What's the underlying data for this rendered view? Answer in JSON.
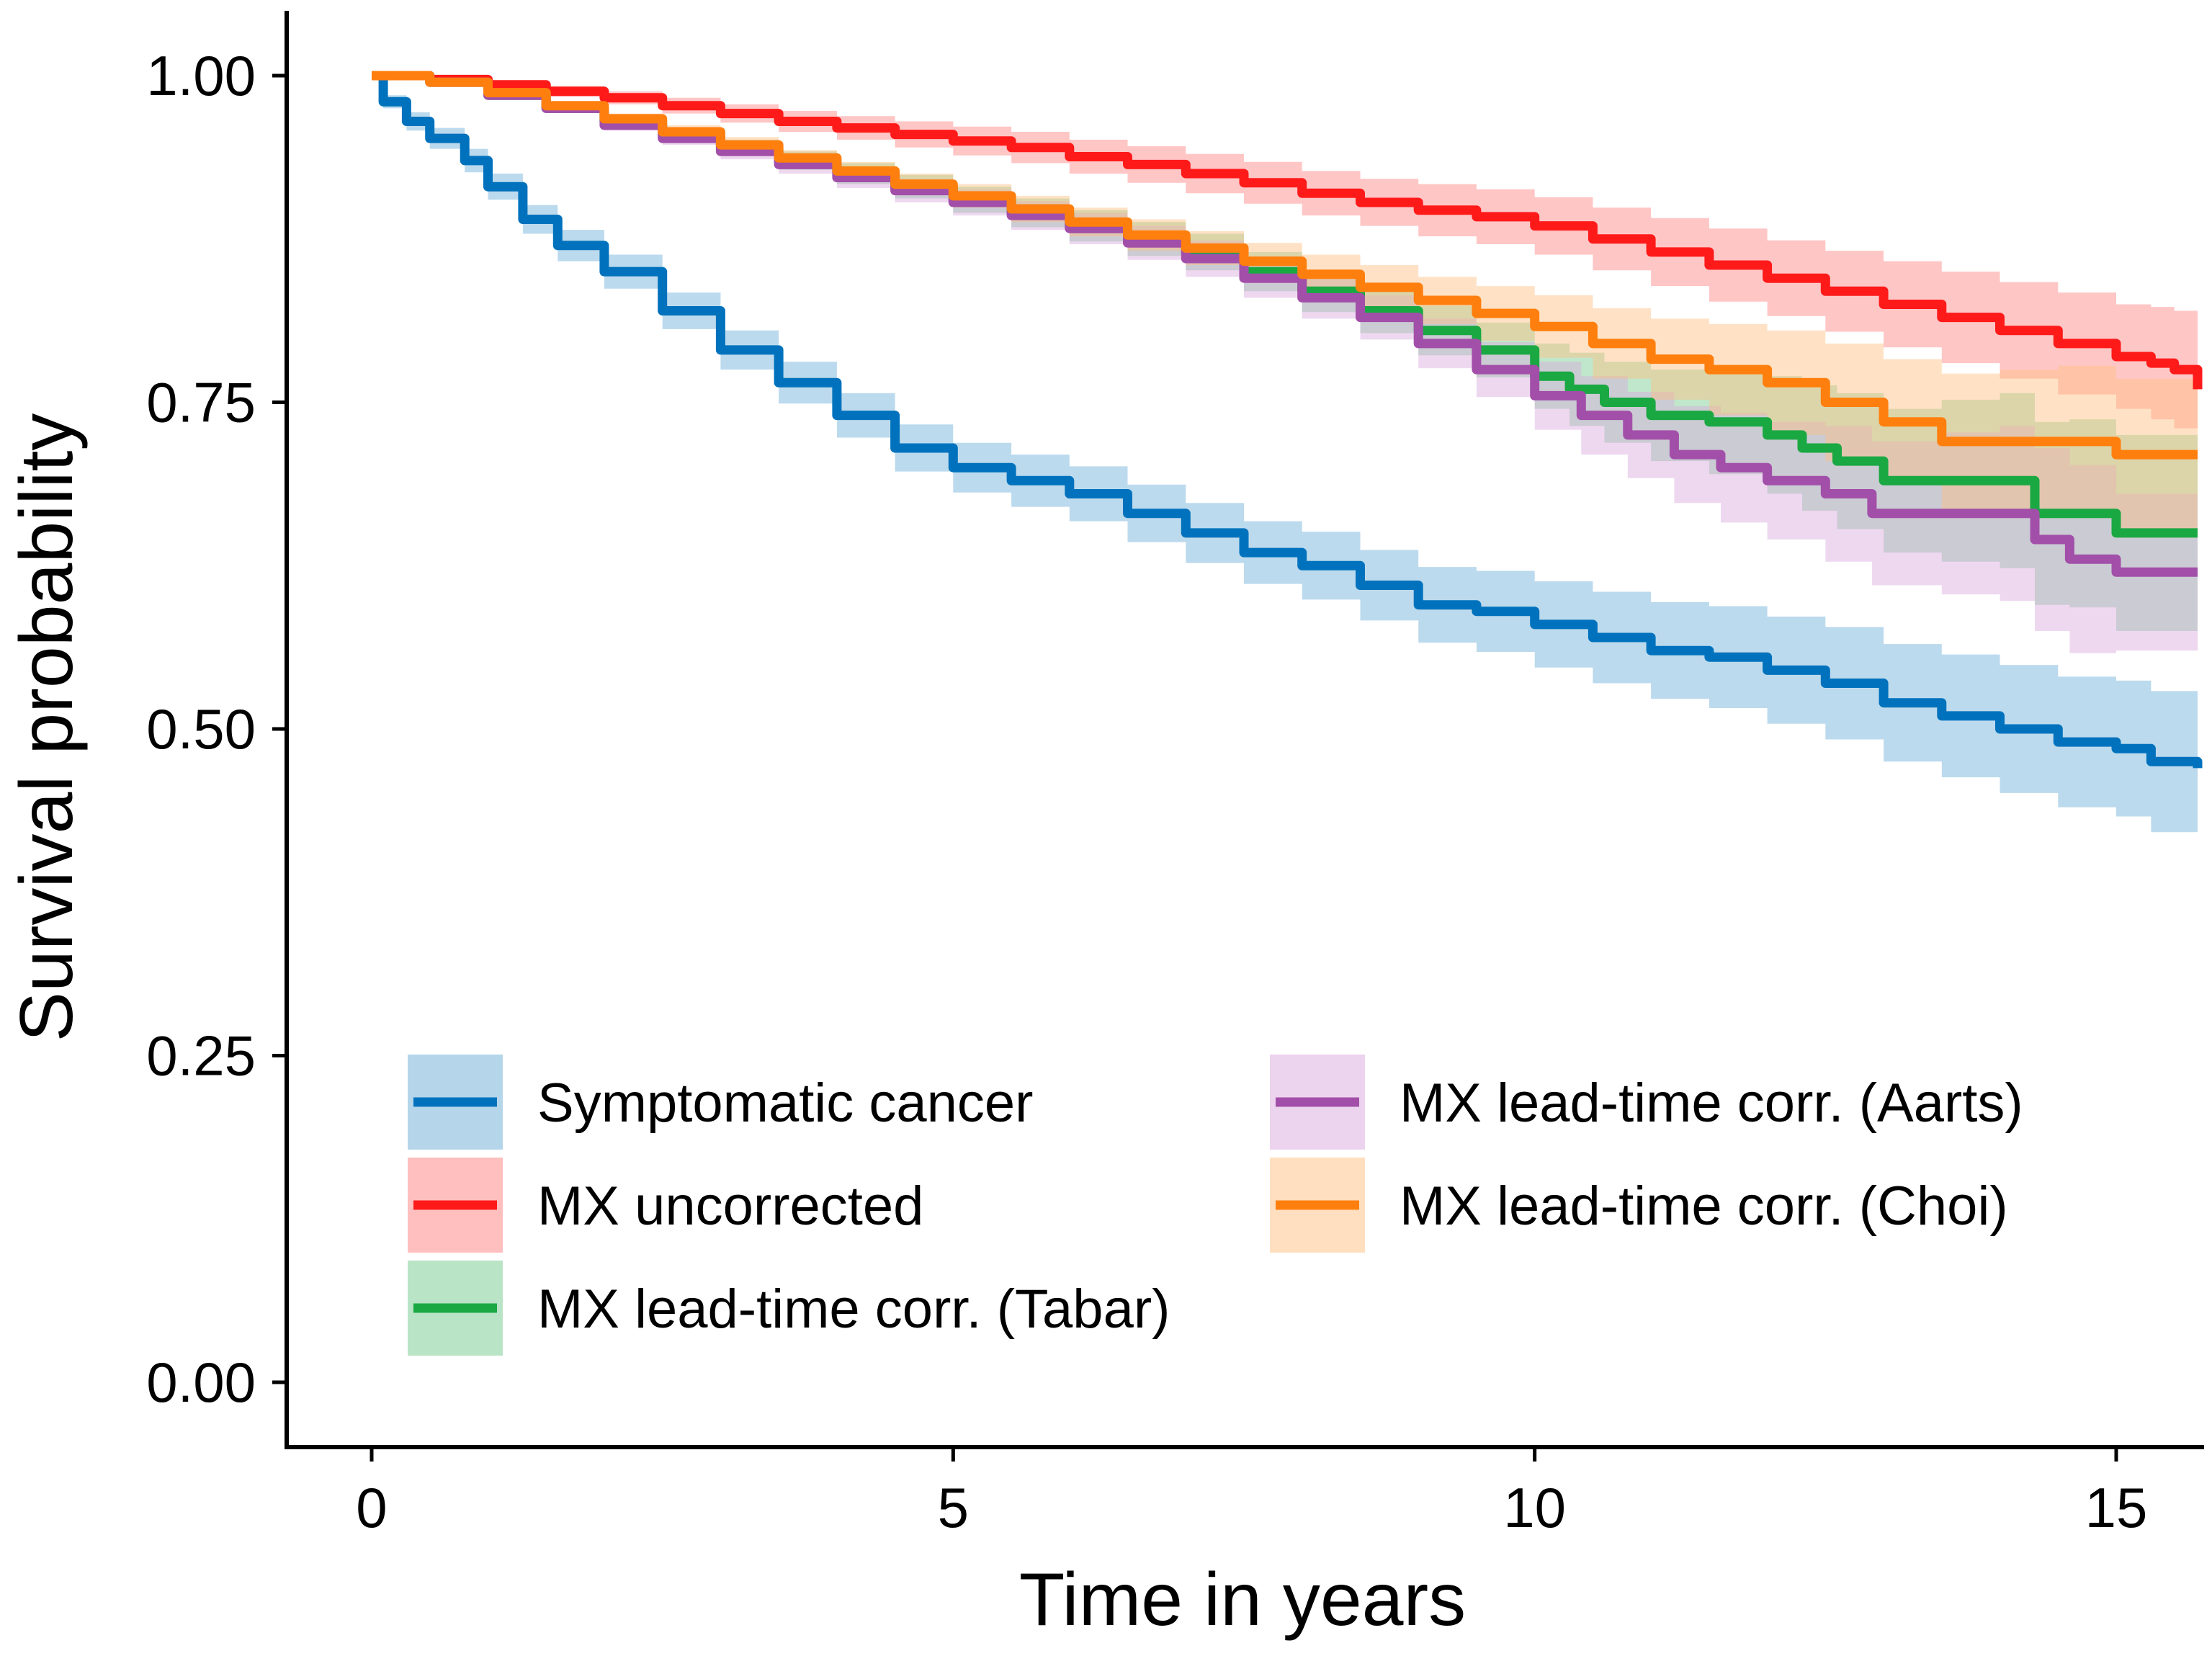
{
  "chart_data": {
    "type": "line",
    "subtype": "kaplan-meier survival curves with confidence bands",
    "title": "",
    "xlabel": "Time in years",
    "ylabel": "Survival probability",
    "xlim": [
      -0.7,
      15.7
    ],
    "ylim": [
      -0.05,
      1.05
    ],
    "xticks": [
      0,
      5,
      10,
      15
    ],
    "xtick_labels": [
      "0",
      "5",
      "10",
      "15"
    ],
    "yticks": [
      0,
      0.25,
      0.5,
      0.75,
      1
    ],
    "ytick_labels": [
      "0.00",
      "0.25",
      "0.50",
      "0.75",
      "1.00"
    ],
    "grid": false,
    "legend": {
      "position": "bottom-left",
      "columns": 2
    },
    "series": [
      {
        "name": "Symptomatic cancer",
        "color": "#0072BD",
        "band_color": "#6BAED6",
        "x": [
          0,
          0.1,
          0.3,
          0.5,
          0.8,
          1.0,
          1.3,
          1.6,
          2.0,
          2.5,
          3.0,
          3.5,
          4.0,
          4.5,
          5.0,
          5.5,
          6.0,
          6.5,
          7.0,
          7.5,
          8.0,
          8.5,
          9.0,
          9.5,
          10.0,
          10.5,
          11.0,
          11.5,
          12.0,
          12.5,
          13.0,
          13.5,
          14.0,
          14.5,
          15.0,
          15.3,
          15.7
        ],
        "y": [
          1.0,
          0.98,
          0.965,
          0.952,
          0.935,
          0.915,
          0.89,
          0.87,
          0.85,
          0.82,
          0.79,
          0.765,
          0.74,
          0.715,
          0.7,
          0.69,
          0.68,
          0.665,
          0.65,
          0.635,
          0.625,
          0.61,
          0.595,
          0.59,
          0.58,
          0.57,
          0.56,
          0.555,
          0.545,
          0.535,
          0.52,
          0.51,
          0.5,
          0.49,
          0.485,
          0.475,
          0.47
        ],
        "lower": [
          1.0,
          0.975,
          0.958,
          0.944,
          0.926,
          0.905,
          0.879,
          0.858,
          0.837,
          0.806,
          0.775,
          0.749,
          0.723,
          0.697,
          0.681,
          0.67,
          0.659,
          0.643,
          0.627,
          0.611,
          0.599,
          0.583,
          0.566,
          0.559,
          0.547,
          0.535,
          0.523,
          0.516,
          0.504,
          0.492,
          0.475,
          0.463,
          0.451,
          0.44,
          0.433,
          0.421,
          0.44
        ],
        "upper": [
          1.0,
          0.985,
          0.972,
          0.96,
          0.944,
          0.925,
          0.901,
          0.882,
          0.863,
          0.834,
          0.805,
          0.781,
          0.757,
          0.733,
          0.719,
          0.71,
          0.701,
          0.687,
          0.673,
          0.659,
          0.651,
          0.637,
          0.624,
          0.621,
          0.613,
          0.605,
          0.597,
          0.594,
          0.586,
          0.578,
          0.565,
          0.557,
          0.549,
          0.54,
          0.537,
          0.529,
          0.5
        ]
      },
      {
        "name": "MX uncorrected",
        "color": "#FF1A1A",
        "band_color": "#FF8080",
        "x": [
          0,
          0.5,
          1.0,
          1.5,
          2.0,
          2.5,
          3.0,
          3.5,
          4.0,
          4.5,
          5.0,
          5.5,
          6.0,
          6.5,
          7.0,
          7.5,
          8.0,
          8.5,
          9.0,
          9.5,
          10.0,
          10.5,
          11.0,
          11.5,
          12.0,
          12.5,
          13.0,
          13.5,
          14.0,
          14.5,
          15.0,
          15.3,
          15.5,
          15.7
        ],
        "y": [
          1.0,
          0.997,
          0.993,
          0.988,
          0.983,
          0.977,
          0.971,
          0.965,
          0.96,
          0.955,
          0.95,
          0.945,
          0.938,
          0.932,
          0.925,
          0.918,
          0.91,
          0.903,
          0.897,
          0.892,
          0.885,
          0.875,
          0.865,
          0.855,
          0.845,
          0.835,
          0.825,
          0.815,
          0.805,
          0.795,
          0.785,
          0.78,
          0.775,
          0.76
        ],
        "lower": [
          1.0,
          0.995,
          0.99,
          0.984,
          0.978,
          0.971,
          0.964,
          0.957,
          0.951,
          0.945,
          0.939,
          0.933,
          0.925,
          0.918,
          0.91,
          0.902,
          0.893,
          0.885,
          0.877,
          0.871,
          0.863,
          0.851,
          0.839,
          0.827,
          0.816,
          0.804,
          0.792,
          0.78,
          0.768,
          0.756,
          0.745,
          0.737,
          0.73,
          0.73
        ],
        "upper": [
          1.0,
          0.999,
          0.996,
          0.992,
          0.988,
          0.983,
          0.978,
          0.973,
          0.969,
          0.965,
          0.961,
          0.957,
          0.951,
          0.946,
          0.94,
          0.934,
          0.927,
          0.921,
          0.917,
          0.913,
          0.907,
          0.899,
          0.891,
          0.883,
          0.874,
          0.866,
          0.858,
          0.85,
          0.842,
          0.834,
          0.825,
          0.823,
          0.82,
          0.8
        ]
      },
      {
        "name": "MX lead-time corr. (Tabar)",
        "color": "#1AA843",
        "band_color": "#74C98B",
        "x": [
          0,
          0.5,
          1.0,
          1.5,
          2.0,
          2.5,
          3.0,
          3.5,
          4.0,
          4.5,
          5.0,
          5.5,
          6.0,
          6.5,
          7.0,
          7.5,
          8.0,
          8.5,
          9.0,
          9.5,
          10.0,
          10.3,
          10.6,
          11.0,
          11.5,
          12.0,
          12.3,
          12.6,
          13.0,
          13.5,
          14.0,
          14.3,
          14.6,
          15.0,
          15.7
        ],
        "y": [
          1.0,
          0.995,
          0.985,
          0.975,
          0.965,
          0.955,
          0.945,
          0.935,
          0.925,
          0.915,
          0.905,
          0.895,
          0.885,
          0.875,
          0.865,
          0.85,
          0.835,
          0.82,
          0.805,
          0.79,
          0.77,
          0.76,
          0.75,
          0.74,
          0.735,
          0.725,
          0.715,
          0.705,
          0.69,
          0.69,
          0.69,
          0.665,
          0.665,
          0.65,
          0.65
        ],
        "lower": [
          1.0,
          0.994,
          0.983,
          0.972,
          0.961,
          0.95,
          0.939,
          0.928,
          0.917,
          0.906,
          0.895,
          0.884,
          0.873,
          0.862,
          0.851,
          0.835,
          0.819,
          0.803,
          0.786,
          0.769,
          0.745,
          0.732,
          0.719,
          0.705,
          0.695,
          0.68,
          0.667,
          0.653,
          0.635,
          0.628,
          0.623,
          0.595,
          0.593,
          0.575,
          0.59
        ],
        "upper": [
          1.0,
          0.996,
          0.987,
          0.978,
          0.969,
          0.96,
          0.951,
          0.942,
          0.933,
          0.924,
          0.915,
          0.906,
          0.897,
          0.888,
          0.879,
          0.865,
          0.851,
          0.837,
          0.824,
          0.811,
          0.795,
          0.788,
          0.781,
          0.775,
          0.775,
          0.77,
          0.763,
          0.757,
          0.745,
          0.752,
          0.757,
          0.735,
          0.737,
          0.725,
          0.71
        ]
      },
      {
        "name": "MX lead-time corr. (Aarts)",
        "color": "#A24FA9",
        "band_color": "#D9A8DE",
        "x": [
          0,
          0.5,
          1.0,
          1.5,
          2.0,
          2.5,
          3.0,
          3.5,
          4.0,
          4.5,
          5.0,
          5.5,
          6.0,
          6.5,
          7.0,
          7.5,
          8.0,
          8.5,
          9.0,
          9.5,
          10.0,
          10.4,
          10.8,
          11.2,
          11.6,
          12.0,
          12.5,
          12.9,
          13.5,
          14.0,
          14.3,
          14.6,
          15.0,
          15.7
        ],
        "y": [
          1.0,
          0.995,
          0.985,
          0.975,
          0.962,
          0.952,
          0.942,
          0.932,
          0.922,
          0.912,
          0.903,
          0.893,
          0.883,
          0.872,
          0.86,
          0.845,
          0.83,
          0.815,
          0.795,
          0.775,
          0.755,
          0.74,
          0.725,
          0.71,
          0.7,
          0.69,
          0.68,
          0.665,
          0.665,
          0.665,
          0.645,
          0.63,
          0.62,
          0.62
        ],
        "lower": [
          1.0,
          0.994,
          0.983,
          0.972,
          0.958,
          0.947,
          0.936,
          0.925,
          0.914,
          0.903,
          0.893,
          0.882,
          0.871,
          0.859,
          0.846,
          0.83,
          0.814,
          0.798,
          0.776,
          0.754,
          0.729,
          0.71,
          0.692,
          0.673,
          0.658,
          0.645,
          0.628,
          0.61,
          0.603,
          0.598,
          0.575,
          0.558,
          0.56,
          0.56
        ],
        "upper": [
          1.0,
          0.996,
          0.987,
          0.978,
          0.966,
          0.957,
          0.948,
          0.939,
          0.93,
          0.921,
          0.913,
          0.904,
          0.895,
          0.885,
          0.874,
          0.86,
          0.846,
          0.832,
          0.814,
          0.796,
          0.781,
          0.77,
          0.758,
          0.747,
          0.742,
          0.735,
          0.732,
          0.72,
          0.727,
          0.732,
          0.715,
          0.702,
          0.68,
          0.66
        ]
      },
      {
        "name": "MX lead-time corr. (Choi)",
        "color": "#FF7F0E",
        "band_color": "#FFBF80",
        "x": [
          0,
          0.5,
          1.0,
          1.5,
          2.0,
          2.5,
          3.0,
          3.5,
          4.0,
          4.5,
          5.0,
          5.5,
          6.0,
          6.5,
          7.0,
          7.5,
          8.0,
          8.5,
          9.0,
          9.5,
          10.0,
          10.5,
          11.0,
          11.5,
          12.0,
          12.5,
          13.0,
          13.5,
          14.0,
          14.5,
          15.0,
          15.7
        ],
        "y": [
          1.0,
          0.995,
          0.987,
          0.977,
          0.967,
          0.957,
          0.947,
          0.937,
          0.927,
          0.917,
          0.908,
          0.898,
          0.888,
          0.878,
          0.868,
          0.858,
          0.848,
          0.838,
          0.828,
          0.818,
          0.808,
          0.795,
          0.783,
          0.775,
          0.765,
          0.75,
          0.735,
          0.72,
          0.72,
          0.72,
          0.71,
          0.71
        ],
        "lower": [
          1.0,
          0.994,
          0.985,
          0.974,
          0.963,
          0.952,
          0.941,
          0.931,
          0.92,
          0.909,
          0.899,
          0.888,
          0.877,
          0.866,
          0.855,
          0.844,
          0.833,
          0.821,
          0.81,
          0.797,
          0.784,
          0.768,
          0.752,
          0.74,
          0.725,
          0.705,
          0.687,
          0.668,
          0.665,
          0.662,
          0.652,
          0.66
        ],
        "upper": [
          1.0,
          0.996,
          0.989,
          0.98,
          0.971,
          0.962,
          0.953,
          0.943,
          0.934,
          0.925,
          0.917,
          0.908,
          0.899,
          0.89,
          0.881,
          0.872,
          0.863,
          0.855,
          0.846,
          0.839,
          0.832,
          0.822,
          0.814,
          0.81,
          0.805,
          0.795,
          0.783,
          0.772,
          0.775,
          0.778,
          0.768,
          0.76
        ]
      }
    ]
  }
}
